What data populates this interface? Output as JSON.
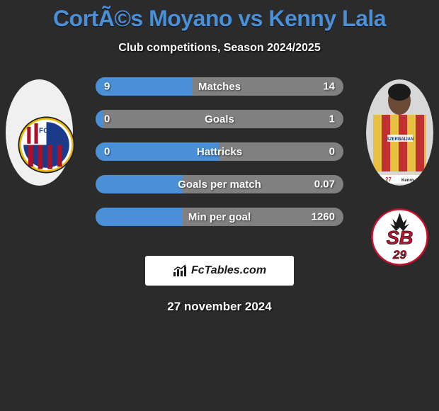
{
  "title": "CortÃ©s Moyano vs Kenny Lala",
  "subtitle": "Club competitions, Season 2024/2025",
  "date": "27 november 2024",
  "fctables_text": "FcTables.com",
  "colors": {
    "background": "#2b2b2b",
    "title": "#4a90d9",
    "bar_left": "#4a90d9",
    "bar_right": "#808080",
    "text": "#ffffff"
  },
  "player_left": {
    "photo_bg": "#f0f0f0"
  },
  "player_right": {
    "number": "27",
    "name": "Kenny LALA",
    "jersey_colors": {
      "stripe1": "#e8c040",
      "stripe2": "#c03030",
      "shorts": "#1a2a50"
    }
  },
  "club_left": {
    "name": "FC Barcelona",
    "abbr": "FCB",
    "colors": {
      "ring": "#e8b800",
      "blue": "#1a3a8a",
      "red": "#a8102a"
    }
  },
  "club_right": {
    "name": "Stade Brestois 29",
    "abbr": "SB",
    "num": "29",
    "colors": {
      "bg": "#ffffff",
      "red": "#c8102e",
      "outline": "#1a1a1a"
    }
  },
  "stats": [
    {
      "label": "Matches",
      "left_val": "9",
      "right_val": "14",
      "left_pct": 39
    },
    {
      "label": "Goals",
      "left_val": "0",
      "right_val": "1",
      "left_pct": 3
    },
    {
      "label": "Hattricks",
      "left_val": "0",
      "right_val": "0",
      "left_pct": 50
    },
    {
      "label": "Goals per match",
      "left_val": "",
      "right_val": "0.07",
      "left_pct": 35
    },
    {
      "label": "Min per goal",
      "left_val": "",
      "right_val": "1260",
      "left_pct": 35
    }
  ]
}
